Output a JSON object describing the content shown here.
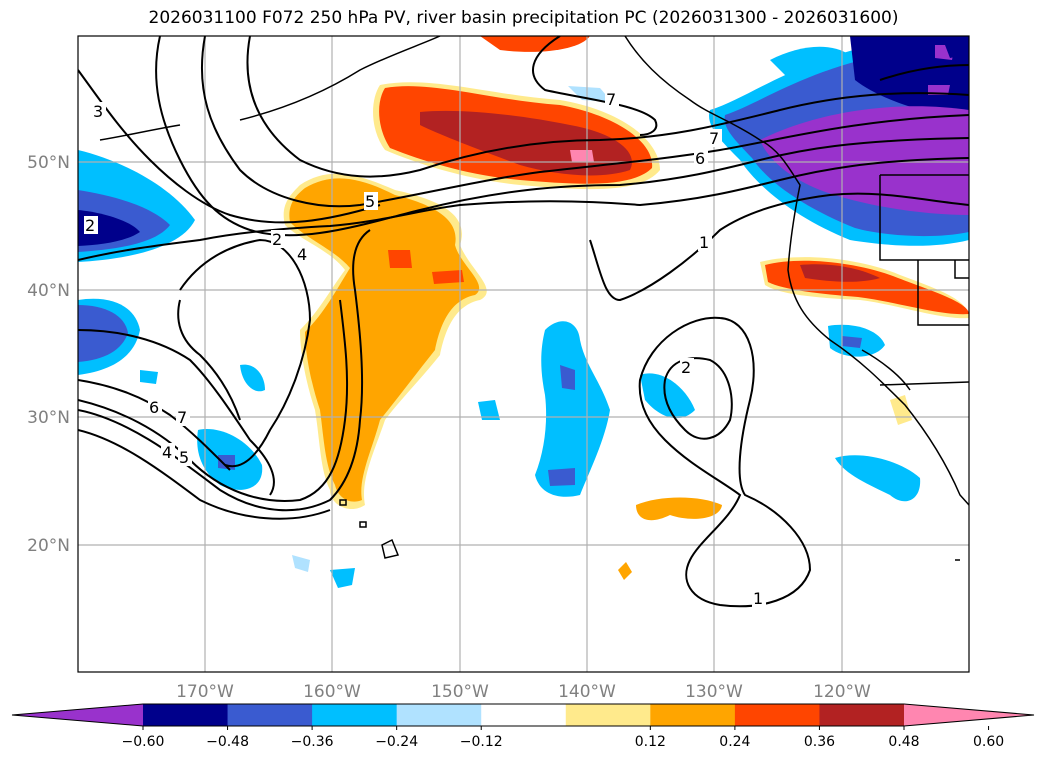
{
  "title": "2026031100 F072 250 hPa PV, river basin precipitation PC (2026031300 - 2026031600)",
  "map": {
    "lon_labels": [
      "170°W",
      "160°W",
      "150°W",
      "140°W",
      "130°W",
      "120°W"
    ],
    "lat_labels": [
      "50°N",
      "40°N",
      "30°N",
      "20°N"
    ],
    "contour_labels": [
      "3",
      "2",
      "4",
      "5",
      "6",
      "7",
      "1",
      "2",
      "1",
      "6",
      "7",
      "4",
      "5",
      "7",
      "2"
    ]
  },
  "colorbar": {
    "ticks": [
      "−0.60",
      "−0.48",
      "−0.36",
      "−0.24",
      "−0.12",
      "0.12",
      "0.24",
      "0.36",
      "0.48",
      "0.60"
    ],
    "colors": [
      "#9932cc",
      "#00008b",
      "#3a5bd0",
      "#00bfff",
      "#b0e2ff",
      "#ffffff",
      "#ffea8c",
      "#ffa500",
      "#ff4500",
      "#b22222",
      "#ff86b0"
    ]
  },
  "colors": {
    "neg_strong": "#9932cc",
    "neg_dark": "#00008b",
    "neg_mid": "#3a5bd0",
    "neg_light": "#00bfff",
    "neg_pale": "#b0e2ff",
    "pos_pale": "#ffea8c",
    "pos_mid": "#ffa500",
    "pos_red": "#ff4500",
    "pos_dark": "#b22222",
    "pos_strong": "#ff86b0"
  }
}
